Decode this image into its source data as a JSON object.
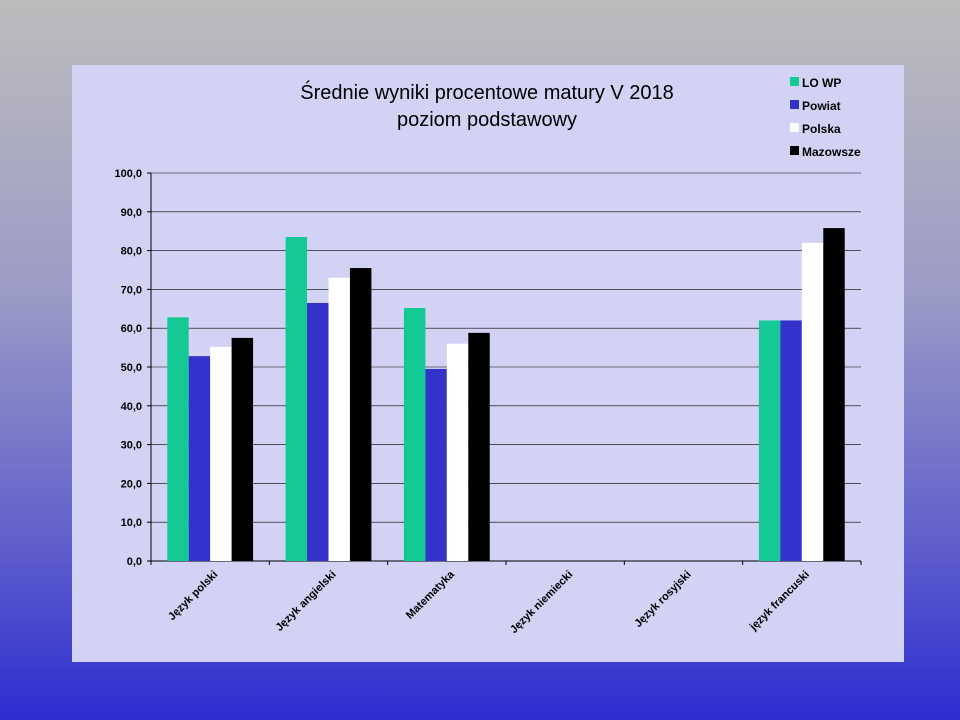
{
  "chart_data": {
    "type": "bar",
    "title": [
      "Średnie wyniki procentowe matury V 2018",
      "poziom podstawowy"
    ],
    "categories": [
      "Język polski",
      "Język angielski",
      "Matematyka",
      "Język niemiecki",
      "Język rosyjski",
      "język francuski"
    ],
    "series": [
      {
        "name": "LO WP",
        "color": "#14c994",
        "values": [
          62.8,
          83.5,
          65.2,
          null,
          null,
          62.0
        ]
      },
      {
        "name": "Powiat",
        "color": "#3333cc",
        "values": [
          52.8,
          66.5,
          49.5,
          null,
          null,
          62.0
        ]
      },
      {
        "name": "Polska",
        "color": "#ffffff",
        "values": [
          55.2,
          73.0,
          56.0,
          null,
          null,
          82.0
        ]
      },
      {
        "name": "Mazowsze",
        "color": "#000000",
        "values": [
          57.5,
          75.5,
          58.8,
          null,
          null,
          85.8
        ]
      }
    ],
    "ylim": [
      0,
      100
    ],
    "yticks": [
      "0,0",
      "10,0",
      "20,0",
      "30,0",
      "40,0",
      "50,0",
      "60,0",
      "70,0",
      "80,0",
      "90,0",
      "100,0"
    ],
    "grid": true,
    "legend_position": "top-right"
  }
}
